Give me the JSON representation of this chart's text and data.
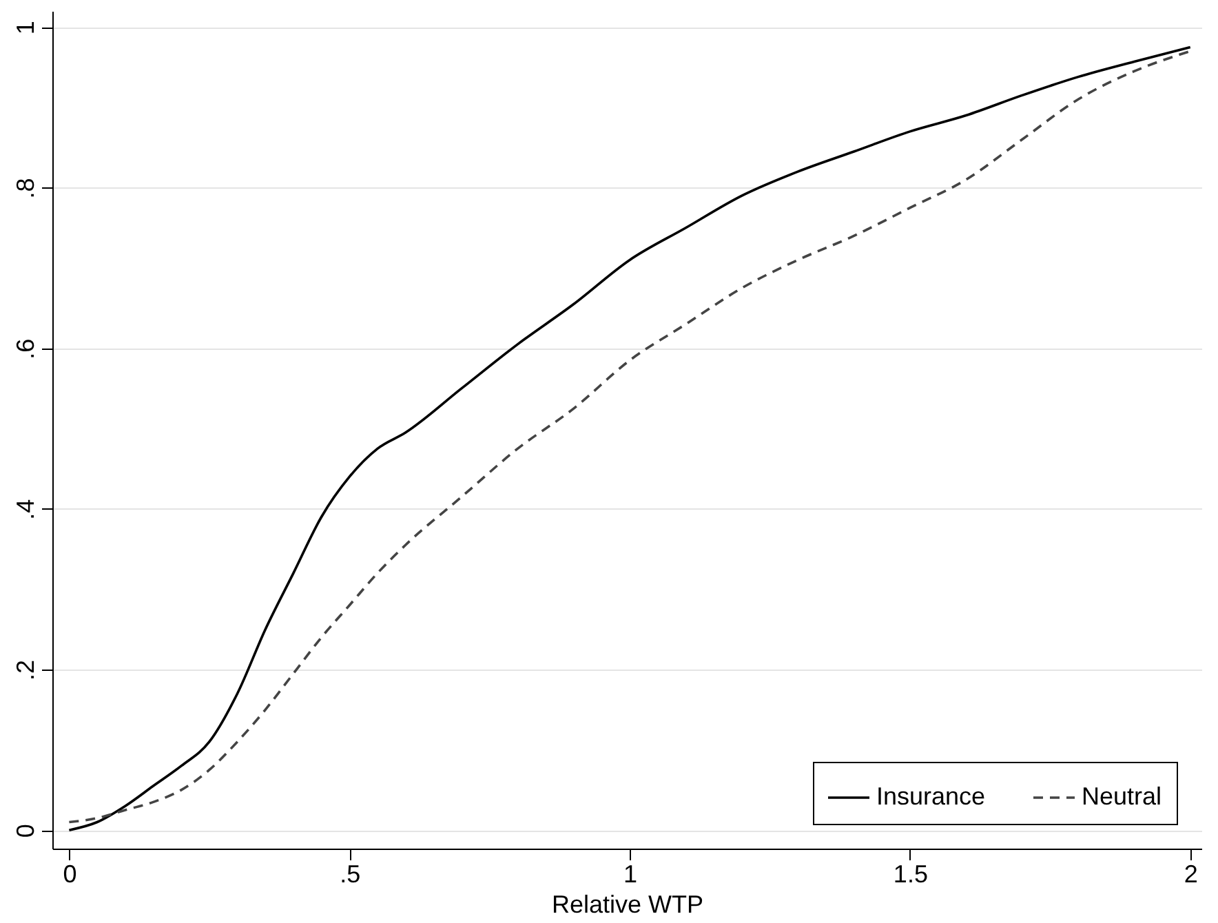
{
  "chart_data": {
    "type": "line",
    "xlabel": "Relative WTP",
    "x": [
      0,
      0.05,
      0.1,
      0.15,
      0.2,
      0.25,
      0.3,
      0.35,
      0.4,
      0.45,
      0.5,
      0.55,
      0.6,
      0.7,
      0.8,
      0.9,
      1.0,
      1.1,
      1.2,
      1.3,
      1.4,
      1.5,
      1.6,
      1.7,
      1.8,
      1.9,
      2.0
    ],
    "series": [
      {
        "name": "Insurance",
        "color": "#000000",
        "line_style": "solid",
        "values": [
          0,
          0.01,
          0.03,
          0.055,
          0.08,
          0.11,
          0.17,
          0.25,
          0.32,
          0.39,
          0.44,
          0.475,
          0.495,
          0.55,
          0.605,
          0.655,
          0.71,
          0.75,
          0.79,
          0.82,
          0.845,
          0.87,
          0.89,
          0.915,
          0.938,
          0.957,
          0.975
        ]
      },
      {
        "name": "Neutral",
        "color": "#444444",
        "line_style": "dashed",
        "values": [
          0.01,
          0.015,
          0.025,
          0.035,
          0.05,
          0.075,
          0.11,
          0.15,
          0.195,
          0.24,
          0.28,
          0.32,
          0.355,
          0.415,
          0.475,
          0.525,
          0.585,
          0.63,
          0.675,
          0.71,
          0.74,
          0.775,
          0.81,
          0.86,
          0.91,
          0.945,
          0.97
        ]
      }
    ],
    "xlim": [
      -0.03,
      2.02
    ],
    "ylim": [
      -0.023,
      1.02
    ],
    "xticks": [
      0,
      {
        "value": 0.5,
        "label": ".5"
      },
      1,
      1.5,
      2
    ],
    "yticks": [
      0,
      {
        "value": 0.2,
        "label": ".2"
      },
      {
        "value": 0.4,
        "label": ".4"
      },
      {
        "value": 0.6,
        "label": ".6"
      },
      {
        "value": 0.8,
        "label": ".8"
      },
      1
    ],
    "grid": "y",
    "legend": "bottom right"
  }
}
